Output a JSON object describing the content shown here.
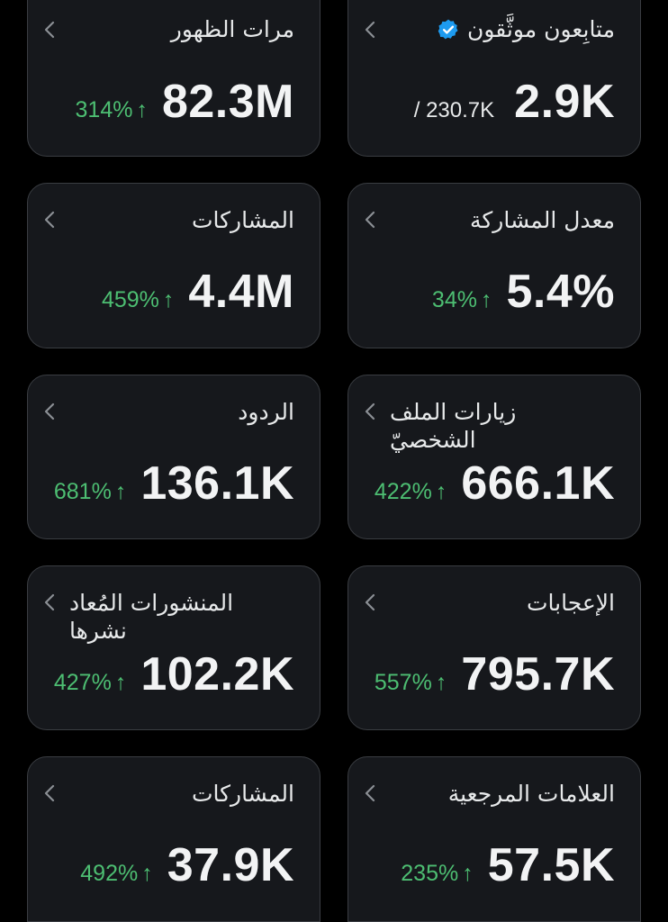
{
  "colors": {
    "background": "#000000",
    "card": "#16181c",
    "card_border": "#3a3d42",
    "positive": "#4dbe72",
    "verified_badge": "#1d9bf0"
  },
  "icons": {
    "chevron": "chevron-left-icon",
    "verified": "verified-badge-icon",
    "trend": "arrow-up-icon"
  },
  "cards": {
    "verified_followers": {
      "title": "متابِعون موثَّقون",
      "value": "2.9K",
      "total": "/ 230.7K"
    },
    "impressions": {
      "title": "مرات الظهور",
      "value": "82.3M",
      "change": "314%",
      "arrow": "↑"
    },
    "engagement_rate": {
      "title": "معدل المشاركة",
      "value": "5.4%",
      "change": "34%",
      "arrow": "↑"
    },
    "engagements": {
      "title": "المشاركات",
      "value": "4.4M",
      "change": "459%",
      "arrow": "↑"
    },
    "profile_visits": {
      "title_line1": "زيارات الملف",
      "title_line2": "الشخصيّ",
      "value": "666.1K",
      "change": "422%",
      "arrow": "↑"
    },
    "replies": {
      "title": "الردود",
      "value": "136.1K",
      "change": "681%",
      "arrow": "↑"
    },
    "likes": {
      "title": "الإعجابات",
      "value": "795.7K",
      "change": "557%",
      "arrow": "↑"
    },
    "reposts": {
      "title_line1": "المنشورات المُعاد",
      "title_line2": "نشرها",
      "value": "102.2K",
      "change": "427%",
      "arrow": "↑"
    },
    "bookmarks": {
      "title": "العلامات المرجعية",
      "value": "57.5K",
      "change": "235%",
      "arrow": "↑"
    },
    "shares": {
      "title": "المشاركات",
      "value": "37.9K",
      "change": "492%",
      "arrow": "↑"
    }
  }
}
